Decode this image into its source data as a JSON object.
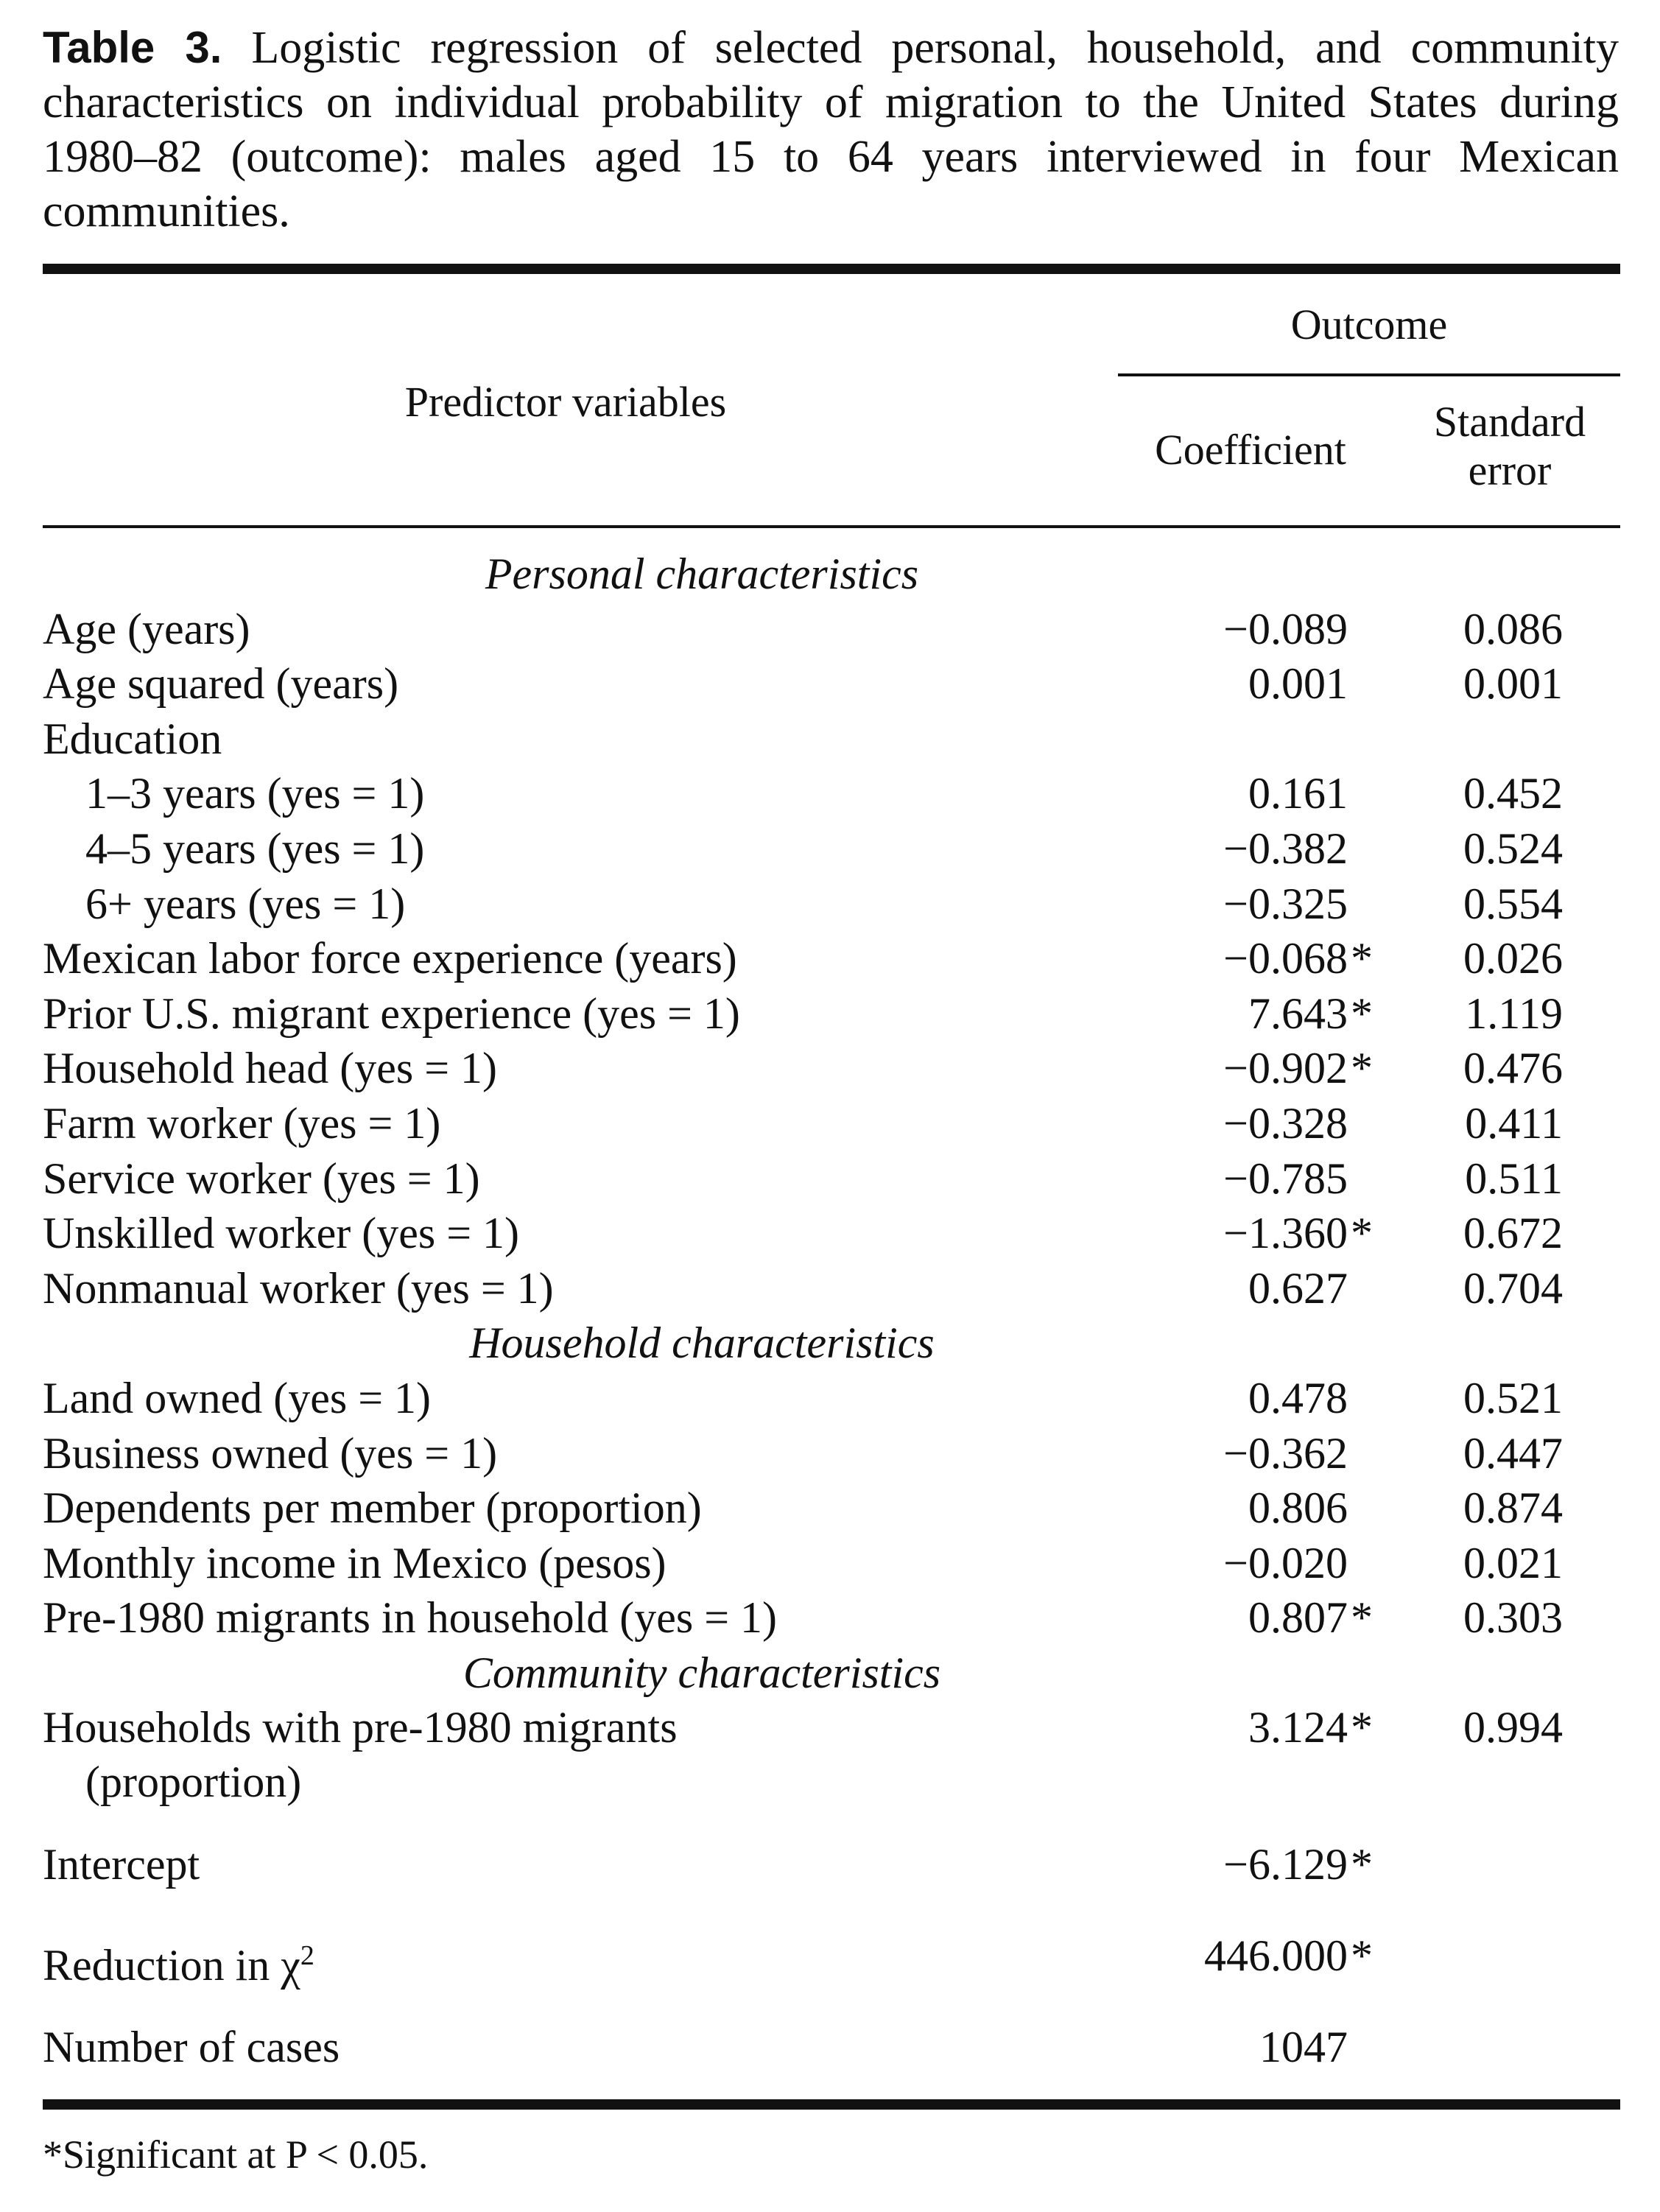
{
  "caption": {
    "label": "Table 3.",
    "text": "Logistic regression of selected personal, household, and community characteristics on individual probability of migration to the United States during 1980–82 (outcome): males aged 15 to 64 years interviewed in four Mexican communities."
  },
  "headers": {
    "predictor": "Predictor variables",
    "outcome": "Outcome",
    "coefficient": "Coefficient",
    "standard_error_1": "Standard",
    "standard_error_2": "error"
  },
  "sections": {
    "personal": "Personal characteristics",
    "household": "Household characteristics",
    "community": "Community characteristics"
  },
  "rows": [
    {
      "name": "Age (years)",
      "coef": "−0.089",
      "star": "",
      "se": "0.086"
    },
    {
      "name": "Age squared (years)",
      "coef": "0.001",
      "star": "",
      "se": "0.001"
    },
    {
      "name": "Education",
      "coef": "",
      "star": "",
      "se": ""
    },
    {
      "name": "1–3 years (yes = 1)",
      "coef": "0.161",
      "star": "",
      "se": "0.452"
    },
    {
      "name": "4–5 years (yes = 1)",
      "coef": "−0.382",
      "star": "",
      "se": "0.524"
    },
    {
      "name": "6+ years (yes = 1)",
      "coef": "−0.325",
      "star": "",
      "se": "0.554"
    },
    {
      "name": "Mexican labor force experience (years)",
      "coef": "−0.068",
      "star": "*",
      "se": "0.026"
    },
    {
      "name": "Prior U.S. migrant experience (yes = 1)",
      "coef": "7.643",
      "star": "*",
      "se": "1.119"
    },
    {
      "name": "Household head (yes = 1)",
      "coef": "−0.902",
      "star": "*",
      "se": "0.476"
    },
    {
      "name": "Farm worker (yes = 1)",
      "coef": "−0.328",
      "star": "",
      "se": "0.411"
    },
    {
      "name": "Service worker (yes = 1)",
      "coef": "−0.785",
      "star": "",
      "se": "0.511"
    },
    {
      "name": "Unskilled worker (yes = 1)",
      "coef": "−1.360",
      "star": "*",
      "se": "0.672"
    },
    {
      "name": "Nonmanual worker (yes = 1)",
      "coef": "0.627",
      "star": "",
      "se": "0.704"
    },
    {
      "name": "Land owned (yes = 1)",
      "coef": "0.478",
      "star": "",
      "se": "0.521"
    },
    {
      "name": "Business owned (yes = 1)",
      "coef": "−0.362",
      "star": "",
      "se": "0.447"
    },
    {
      "name": "Dependents per member (proportion)",
      "coef": "0.806",
      "star": "",
      "se": "0.874"
    },
    {
      "name": "Monthly income in Mexico (pesos)",
      "coef": "−0.020",
      "star": "",
      "se": "0.021"
    },
    {
      "name": "Pre-1980 migrants in household (yes = 1)",
      "coef": "0.807",
      "star": "*",
      "se": "0.303"
    },
    {
      "name": "Households with pre-1980 migrants",
      "name2": "(proportion)",
      "coef": "3.124",
      "star": "*",
      "se": "0.994"
    },
    {
      "name": "Intercept",
      "coef": "−6.129",
      "star": "*",
      "se": ""
    },
    {
      "name": "Reduction in χ",
      "sup": "2",
      "coef": "446.000",
      "star": "*",
      "se": ""
    },
    {
      "name": "Number of cases",
      "coef": "1047",
      "star": "",
      "se": ""
    }
  ],
  "footnote": "*Significant at P < 0.05."
}
